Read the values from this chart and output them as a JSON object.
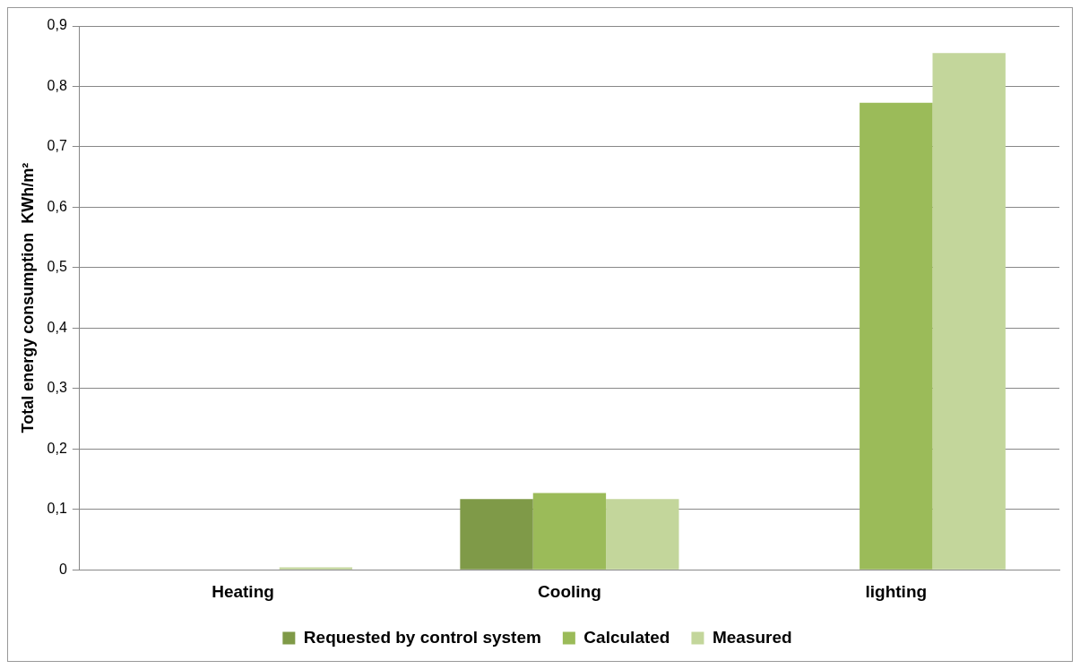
{
  "chart_data": {
    "type": "bar",
    "ylabel": "Total energy consumption  KWh/m²",
    "categories": [
      "Heating",
      "Cooling",
      "lighting"
    ],
    "series": [
      {
        "name": "Requested by control system",
        "color": "#7f9a48",
        "values": [
          0,
          0.117,
          0
        ]
      },
      {
        "name": "Calculated",
        "color": "#9bbb59",
        "values": [
          0,
          0.127,
          0.773
        ]
      },
      {
        "name": "Measured",
        "color": "#c3d69b",
        "values": [
          0.004,
          0.117,
          0.855
        ]
      }
    ],
    "ylim": [
      0,
      0.9
    ],
    "yticks": [
      {
        "value": 0,
        "label": "0"
      },
      {
        "value": 0.1,
        "label": "0,1"
      },
      {
        "value": 0.2,
        "label": "0,2"
      },
      {
        "value": 0.3,
        "label": "0,3"
      },
      {
        "value": 0.4,
        "label": "0,4"
      },
      {
        "value": 0.5,
        "label": "0,5"
      },
      {
        "value": 0.6,
        "label": "0,6"
      },
      {
        "value": 0.7,
        "label": "0,7"
      },
      {
        "value": 0.8,
        "label": "0,8"
      },
      {
        "value": 0.9,
        "label": "0,9"
      }
    ],
    "grid": "y",
    "legend": "bottom"
  }
}
